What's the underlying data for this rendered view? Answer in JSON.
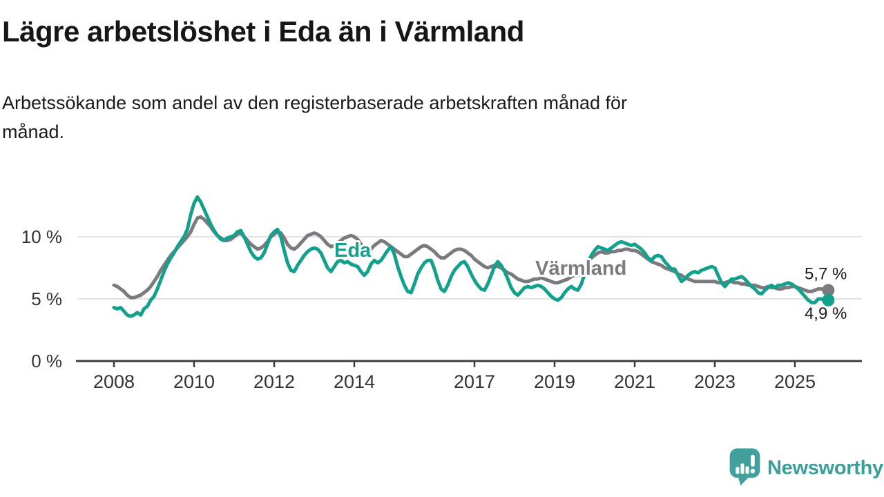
{
  "header": {
    "title": "Lägre arbetslöshet i Eda än i Värmland",
    "subtitle": "Arbetssökande som andel av den registerbaserade arbetskraften månad för månad."
  },
  "chart_data": {
    "type": "line",
    "title": "Lägre arbetslöshet i Eda än i Värmland",
    "x_unit": "month",
    "x_start": 2008.0,
    "x_end_label": "2025-11",
    "xlim": [
      2007.1,
      2026.6
    ],
    "ylim": [
      0,
      13.5
    ],
    "grid": "horizontal",
    "legend_position": "inline-labels",
    "yticks": [
      {
        "value": 0,
        "label": "0 %"
      },
      {
        "value": 5,
        "label": "5 %"
      },
      {
        "value": 10,
        "label": "10 %"
      }
    ],
    "xticks": [
      {
        "value": 2008,
        "label": "2008"
      },
      {
        "value": 2010,
        "label": "2010"
      },
      {
        "value": 2012,
        "label": "2012"
      },
      {
        "value": 2014,
        "label": "2014"
      },
      {
        "value": 2017,
        "label": "2017"
      },
      {
        "value": 2019,
        "label": "2019"
      },
      {
        "value": 2021,
        "label": "2021"
      },
      {
        "value": 2023,
        "label": "2023"
      },
      {
        "value": 2025,
        "label": "2025"
      }
    ],
    "series": [
      {
        "name": "Värmland",
        "color": "#7a7a7f",
        "latest_value": 5.7,
        "latest_label": "5,7 %",
        "label_position": "above",
        "values": [
          6.1,
          6.0,
          5.8,
          5.6,
          5.3,
          5.1,
          5.1,
          5.2,
          5.3,
          5.5,
          5.7,
          6.0,
          6.4,
          6.8,
          7.3,
          7.7,
          8.1,
          8.5,
          8.8,
          9.1,
          9.4,
          9.7,
          10.0,
          10.4,
          11.0,
          11.5,
          11.6,
          11.4,
          11.1,
          10.8,
          10.4,
          10.1,
          9.9,
          9.7,
          9.7,
          9.8,
          10.0,
          10.2,
          10.3,
          10.0,
          9.7,
          9.4,
          9.2,
          9.0,
          9.1,
          9.3,
          9.6,
          10.0,
          10.2,
          10.4,
          10.3,
          9.9,
          9.4,
          9.1,
          9.0,
          9.2,
          9.5,
          9.8,
          10.1,
          10.2,
          10.3,
          10.2,
          10.0,
          9.7,
          9.4,
          9.2,
          9.3,
          9.5,
          9.7,
          9.9,
          10.0,
          10.1,
          10.0,
          9.8,
          9.4,
          9.1,
          8.9,
          9.0,
          9.3,
          9.5,
          9.7,
          9.6,
          9.4,
          9.2,
          9.0,
          8.8,
          8.6,
          8.4,
          8.4,
          8.6,
          8.8,
          9.0,
          9.2,
          9.3,
          9.2,
          9.0,
          8.8,
          8.5,
          8.3,
          8.3,
          8.5,
          8.7,
          8.9,
          9.0,
          9.0,
          8.9,
          8.7,
          8.5,
          8.2,
          8.0,
          7.8,
          7.6,
          7.5,
          7.6,
          7.7,
          7.6,
          7.5,
          7.3,
          7.1,
          7.0,
          6.8,
          6.6,
          6.5,
          6.4,
          6.4,
          6.5,
          6.6,
          6.6,
          6.7,
          6.6,
          6.5,
          6.4,
          6.3,
          6.3,
          6.4,
          6.5,
          6.6,
          6.8,
          6.9,
          6.9,
          7.0,
          7.2,
          7.8,
          8.3,
          8.5,
          8.7,
          8.8,
          8.7,
          8.7,
          8.8,
          8.8,
          8.9,
          8.9,
          9.0,
          9.0,
          8.9,
          8.9,
          8.8,
          8.6,
          8.4,
          8.2,
          8.0,
          7.9,
          7.8,
          7.7,
          7.5,
          7.4,
          7.3,
          7.2,
          7.0,
          6.9,
          6.7,
          6.6,
          6.5,
          6.4,
          6.4,
          6.4,
          6.4,
          6.4,
          6.4,
          6.4,
          6.3,
          6.3,
          6.3,
          6.4,
          6.4,
          6.3,
          6.3,
          6.2,
          6.2,
          6.1,
          6.1,
          6.1,
          6.0,
          5.9,
          5.9,
          6.0,
          5.9,
          5.9,
          5.8,
          5.8,
          5.9,
          5.9,
          6.0,
          6.0,
          5.9,
          5.8,
          5.7,
          5.6,
          5.6,
          5.7,
          5.8,
          5.8,
          5.7,
          5.7
        ]
      },
      {
        "name": "Eda",
        "color": "#13a08c",
        "latest_value": 4.9,
        "latest_label": "4,9 %",
        "label_position": "below",
        "values": [
          4.3,
          4.2,
          4.3,
          4.0,
          3.7,
          3.6,
          3.7,
          3.9,
          3.7,
          4.2,
          4.4,
          4.9,
          5.2,
          5.8,
          6.5,
          7.2,
          7.8,
          8.3,
          8.7,
          9.2,
          9.6,
          10.0,
          10.6,
          11.8,
          12.7,
          13.2,
          12.8,
          12.2,
          11.6,
          11.0,
          10.5,
          10.1,
          9.8,
          9.7,
          9.9,
          10.0,
          10.1,
          10.4,
          10.5,
          10.0,
          9.4,
          8.8,
          8.4,
          8.2,
          8.3,
          8.7,
          9.4,
          10.1,
          10.4,
          10.6,
          10.0,
          8.9,
          7.9,
          7.3,
          7.2,
          7.7,
          8.1,
          8.5,
          8.8,
          9.0,
          9.1,
          9.0,
          8.7,
          8.1,
          7.5,
          7.2,
          7.6,
          8.0,
          8.1,
          7.9,
          8.0,
          7.8,
          7.7,
          7.6,
          7.2,
          6.9,
          7.2,
          7.8,
          8.1,
          7.9,
          8.1,
          8.5,
          8.9,
          9.2,
          8.6,
          7.6,
          6.8,
          6.1,
          5.6,
          5.5,
          6.2,
          7.0,
          7.5,
          7.9,
          8.1,
          8.1,
          7.4,
          6.5,
          5.8,
          5.6,
          6.1,
          6.8,
          7.3,
          7.6,
          7.9,
          8.0,
          7.6,
          7.0,
          6.5,
          6.1,
          5.8,
          5.7,
          6.2,
          6.9,
          7.6,
          8.0,
          7.7,
          7.2,
          6.6,
          5.9,
          5.5,
          5.3,
          5.6,
          5.9,
          6.0,
          5.9,
          6.0,
          6.1,
          6.0,
          5.8,
          5.5,
          5.2,
          5.0,
          4.9,
          5.1,
          5.5,
          5.8,
          6.0,
          5.8,
          5.7,
          6.2,
          7.0,
          7.9,
          8.5,
          8.9,
          9.2,
          9.1,
          9.0,
          8.9,
          9.1,
          9.3,
          9.5,
          9.6,
          9.5,
          9.4,
          9.3,
          9.4,
          9.2,
          9.0,
          8.7,
          8.3,
          8.1,
          8.4,
          8.5,
          8.4,
          8.0,
          7.7,
          7.4,
          7.4,
          6.9,
          6.4,
          6.6,
          6.9,
          7.1,
          7.2,
          7.1,
          7.3,
          7.4,
          7.5,
          7.6,
          7.5,
          6.9,
          6.3,
          6.0,
          6.3,
          6.6,
          6.6,
          6.7,
          6.8,
          6.6,
          6.3,
          6.0,
          5.8,
          5.5,
          5.4,
          5.7,
          5.9,
          6.1,
          5.9,
          6.1,
          6.1,
          6.2,
          6.3,
          6.2,
          6.0,
          5.8,
          5.5,
          5.2,
          4.9,
          4.7,
          4.7,
          5.0,
          5.0,
          4.8,
          4.9
        ]
      }
    ],
    "annotations": [
      {
        "text": "Eda",
        "x": 2013.5,
        "y": 8.4,
        "color": "#13a08c"
      },
      {
        "text": "Värmland",
        "x": 2018.52,
        "y": 6.95,
        "color": "#7a7a7f"
      }
    ],
    "colors": {
      "axis": "#3d3d3d",
      "grid": "#d9d9d9",
      "tick_text": "#333333",
      "value_text": "#1a1a1a",
      "halo": "#ffffff"
    }
  },
  "footer": {
    "brand": "Newsworthy"
  }
}
